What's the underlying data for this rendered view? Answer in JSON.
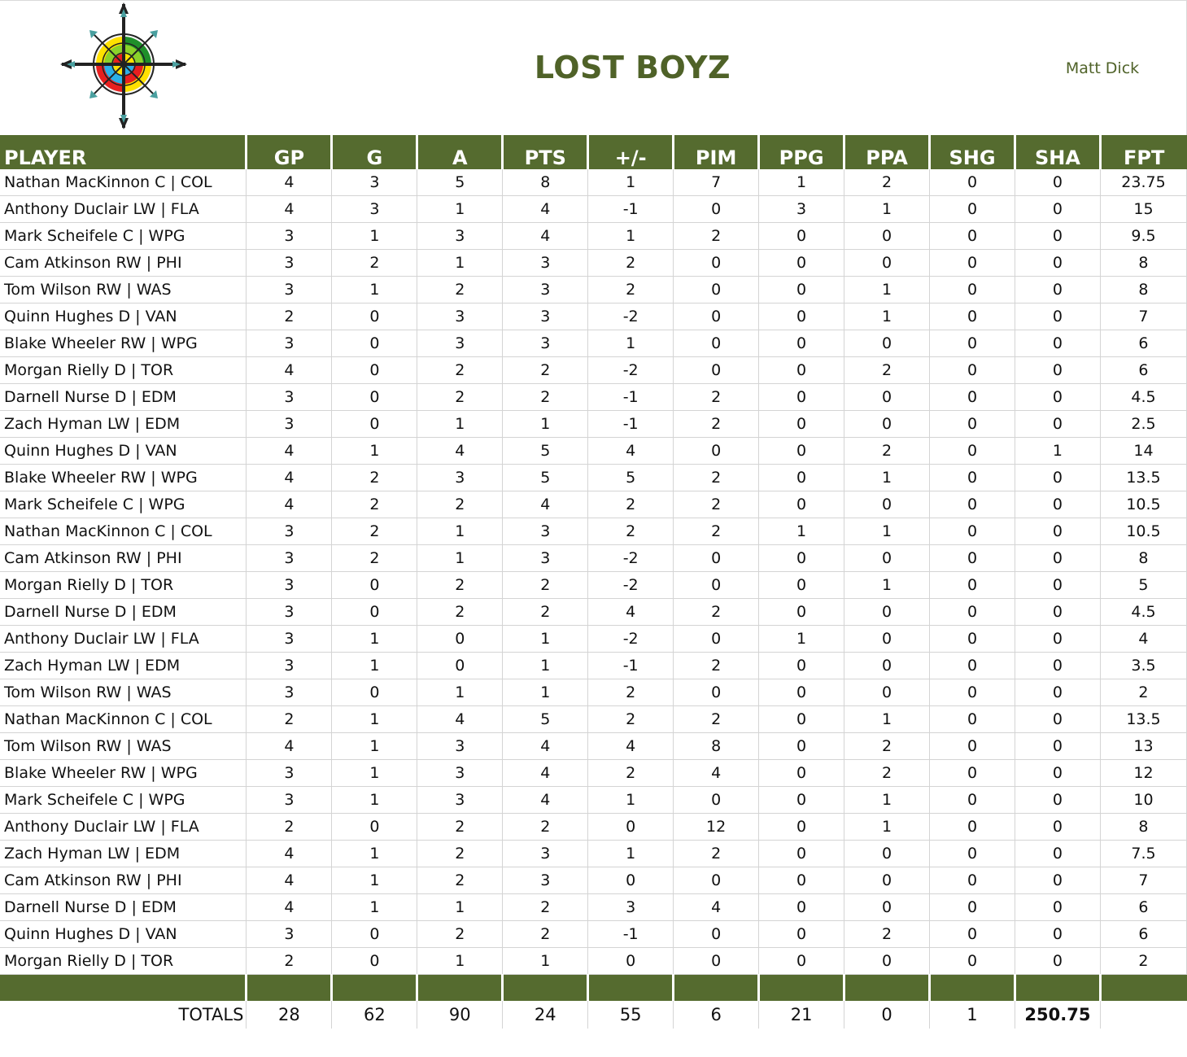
{
  "team": {
    "name": "LOST BOYZ",
    "owner": "Matt Dick"
  },
  "columns": [
    "PLAYER",
    "GP",
    "G",
    "A",
    "PTS",
    "+/-",
    "PIM",
    "PPG",
    "PPA",
    "SHG",
    "SHA",
    "FPT"
  ],
  "rows": [
    [
      "Nathan MacKinnon C | COL",
      "4",
      "3",
      "5",
      "8",
      "1",
      "7",
      "1",
      "2",
      "0",
      "0",
      "23.75"
    ],
    [
      "Anthony Duclair LW | FLA",
      "4",
      "3",
      "1",
      "4",
      "-1",
      "0",
      "3",
      "1",
      "0",
      "0",
      "15"
    ],
    [
      "Mark Scheifele C | WPG",
      "3",
      "1",
      "3",
      "4",
      "1",
      "2",
      "0",
      "0",
      "0",
      "0",
      "9.5"
    ],
    [
      "Cam Atkinson RW | PHI",
      "3",
      "2",
      "1",
      "3",
      "2",
      "0",
      "0",
      "0",
      "0",
      "0",
      "8"
    ],
    [
      "Tom Wilson RW | WAS",
      "3",
      "1",
      "2",
      "3",
      "2",
      "0",
      "0",
      "1",
      "0",
      "0",
      "8"
    ],
    [
      "Quinn Hughes D | VAN",
      "2",
      "0",
      "3",
      "3",
      "-2",
      "0",
      "0",
      "1",
      "0",
      "0",
      "7"
    ],
    [
      "Blake Wheeler RW | WPG",
      "3",
      "0",
      "3",
      "3",
      "1",
      "0",
      "0",
      "0",
      "0",
      "0",
      "6"
    ],
    [
      "Morgan Rielly D | TOR",
      "4",
      "0",
      "2",
      "2",
      "-2",
      "0",
      "0",
      "2",
      "0",
      "0",
      "6"
    ],
    [
      "Darnell Nurse D | EDM",
      "3",
      "0",
      "2",
      "2",
      "-1",
      "2",
      "0",
      "0",
      "0",
      "0",
      "4.5"
    ],
    [
      "Zach Hyman LW | EDM",
      "3",
      "0",
      "1",
      "1",
      "-1",
      "2",
      "0",
      "0",
      "0",
      "0",
      "2.5"
    ],
    [
      "Quinn Hughes D | VAN",
      "4",
      "1",
      "4",
      "5",
      "4",
      "0",
      "0",
      "2",
      "0",
      "1",
      "14"
    ],
    [
      "Blake Wheeler RW | WPG",
      "4",
      "2",
      "3",
      "5",
      "5",
      "2",
      "0",
      "1",
      "0",
      "0",
      "13.5"
    ],
    [
      "Mark Scheifele C | WPG",
      "4",
      "2",
      "2",
      "4",
      "2",
      "2",
      "0",
      "0",
      "0",
      "0",
      "10.5"
    ],
    [
      "Nathan MacKinnon C | COL",
      "3",
      "2",
      "1",
      "3",
      "2",
      "2",
      "1",
      "1",
      "0",
      "0",
      "10.5"
    ],
    [
      "Cam Atkinson RW | PHI",
      "3",
      "2",
      "1",
      "3",
      "-2",
      "0",
      "0",
      "0",
      "0",
      "0",
      "8"
    ],
    [
      "Morgan Rielly D | TOR",
      "3",
      "0",
      "2",
      "2",
      "-2",
      "0",
      "0",
      "1",
      "0",
      "0",
      "5"
    ],
    [
      "Darnell Nurse D | EDM",
      "3",
      "0",
      "2",
      "2",
      "4",
      "2",
      "0",
      "0",
      "0",
      "0",
      "4.5"
    ],
    [
      "Anthony Duclair LW | FLA",
      "3",
      "1",
      "0",
      "1",
      "-2",
      "0",
      "1",
      "0",
      "0",
      "0",
      "4"
    ],
    [
      "Zach Hyman LW | EDM",
      "3",
      "1",
      "0",
      "1",
      "-1",
      "2",
      "0",
      "0",
      "0",
      "0",
      "3.5"
    ],
    [
      "Tom Wilson RW | WAS",
      "3",
      "0",
      "1",
      "1",
      "2",
      "0",
      "0",
      "0",
      "0",
      "0",
      "2"
    ],
    [
      "Nathan MacKinnon C | COL",
      "2",
      "1",
      "4",
      "5",
      "2",
      "2",
      "0",
      "1",
      "0",
      "0",
      "13.5"
    ],
    [
      "Tom Wilson RW | WAS",
      "4",
      "1",
      "3",
      "4",
      "4",
      "8",
      "0",
      "2",
      "0",
      "0",
      "13"
    ],
    [
      "Blake Wheeler RW | WPG",
      "3",
      "1",
      "3",
      "4",
      "2",
      "4",
      "0",
      "2",
      "0",
      "0",
      "12"
    ],
    [
      "Mark Scheifele C | WPG",
      "3",
      "1",
      "3",
      "4",
      "1",
      "0",
      "0",
      "1",
      "0",
      "0",
      "10"
    ],
    [
      "Anthony Duclair LW | FLA",
      "2",
      "0",
      "2",
      "2",
      "0",
      "12",
      "0",
      "1",
      "0",
      "0",
      "8"
    ],
    [
      "Zach Hyman LW | EDM",
      "4",
      "1",
      "2",
      "3",
      "1",
      "2",
      "0",
      "0",
      "0",
      "0",
      "7.5"
    ],
    [
      "Cam Atkinson RW | PHI",
      "4",
      "1",
      "2",
      "3",
      "0",
      "0",
      "0",
      "0",
      "0",
      "0",
      "7"
    ],
    [
      "Darnell Nurse D | EDM",
      "4",
      "1",
      "1",
      "2",
      "3",
      "4",
      "0",
      "0",
      "0",
      "0",
      "6"
    ],
    [
      "Quinn Hughes D | VAN",
      "3",
      "0",
      "2",
      "2",
      "-1",
      "0",
      "0",
      "2",
      "0",
      "0",
      "6"
    ],
    [
      "Morgan Rielly D | TOR",
      "2",
      "0",
      "1",
      "1",
      "0",
      "0",
      "0",
      "0",
      "0",
      "0",
      "2"
    ]
  ],
  "totals": {
    "label": "TOTALS",
    "values": [
      "28",
      "62",
      "90",
      "24",
      "55",
      "6",
      "21",
      "0",
      "1",
      "250.75"
    ]
  },
  "colors": {
    "header_bg": "#556b2f",
    "title": "#4f6228"
  },
  "logo_icon": "compass-target-icon"
}
